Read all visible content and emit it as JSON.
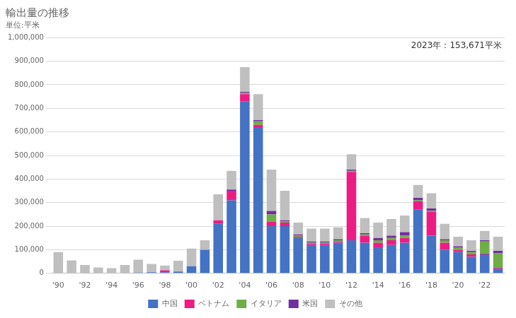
{
  "chart_data": {
    "type": "bar",
    "title": "輸出量の推移",
    "subtitle": "単位:平米",
    "annotation": "2023年：153,671平米",
    "categories": [
      "'90",
      null,
      "'92",
      null,
      "'94",
      null,
      "'96",
      null,
      "'98",
      null,
      "'00",
      null,
      "'02",
      null,
      "'04",
      null,
      "'06",
      null,
      "'08",
      null,
      "'10",
      null,
      "'12",
      null,
      "'14",
      null,
      "'16",
      null,
      "'18",
      null,
      "'20",
      null,
      "'22",
      null
    ],
    "series": [
      {
        "name": "中国",
        "color": "#4472c4",
        "values": [
          0,
          0,
          0,
          0,
          0,
          0,
          3000,
          5000,
          5000,
          8000,
          30000,
          100000,
          210000,
          310000,
          730000,
          620000,
          200000,
          200000,
          150000,
          120000,
          120000,
          130000,
          140000,
          130000,
          110000,
          120000,
          130000,
          270000,
          160000,
          100000,
          90000,
          70000,
          80000,
          20000
        ]
      },
      {
        "name": "ベトナム",
        "color": "#ed1c84",
        "values": [
          0,
          0,
          0,
          0,
          0,
          0,
          0,
          0,
          8000,
          0,
          0,
          0,
          15000,
          40000,
          30000,
          10000,
          20000,
          15000,
          5000,
          5000,
          5000,
          5000,
          290000,
          30000,
          20000,
          20000,
          20000,
          35000,
          100000,
          30000,
          10000,
          10000,
          5000,
          5000
        ]
      },
      {
        "name": "イタリア",
        "color": "#70ad47",
        "values": [
          0,
          0,
          0,
          0,
          0,
          0,
          0,
          0,
          0,
          0,
          0,
          0,
          0,
          0,
          5000,
          15000,
          30000,
          5000,
          5000,
          5000,
          5000,
          5000,
          5000,
          5000,
          10000,
          10000,
          10000,
          5000,
          5000,
          10000,
          10000,
          10000,
          50000,
          60000
        ]
      },
      {
        "name": "米国",
        "color": "#7030a0",
        "values": [
          0,
          0,
          0,
          0,
          0,
          0,
          0,
          0,
          0,
          0,
          0,
          0,
          0,
          5000,
          5000,
          5000,
          15000,
          5000,
          5000,
          5000,
          5000,
          5000,
          5000,
          5000,
          10000,
          10000,
          15000,
          10000,
          10000,
          5000,
          5000,
          5000,
          5000,
          10000
        ]
      },
      {
        "name": "その他",
        "color": "#bfbfbf",
        "values": [
          90000,
          55000,
          35000,
          25000,
          22000,
          35000,
          55000,
          35000,
          20000,
          45000,
          75000,
          40000,
          110000,
          80000,
          105000,
          110000,
          175000,
          125000,
          50000,
          55000,
          55000,
          50000,
          65000,
          65000,
          65000,
          70000,
          70000,
          55000,
          65000,
          65000,
          40000,
          45000,
          40000,
          60000
        ]
      }
    ],
    "stacked": true,
    "ylim": [
      0,
      1000000
    ],
    "yticks": [
      0,
      {
        "value": 100000,
        "label": "100,000"
      },
      {
        "value": 200000,
        "label": "200,000"
      },
      {
        "value": 300000,
        "label": "300,000"
      },
      {
        "value": 400000,
        "label": "400,000"
      },
      {
        "value": 500000,
        "label": "500,000"
      },
      {
        "value": 600000,
        "label": "600,000"
      },
      {
        "value": 700000,
        "label": "700,000"
      },
      {
        "value": 800000,
        "label": "800,000"
      },
      {
        "value": 900000,
        "label": "900,000"
      },
      {
        "value": 1000000,
        "label": "1,000,000"
      }
    ],
    "grid": "y",
    "legend": "bottom"
  }
}
